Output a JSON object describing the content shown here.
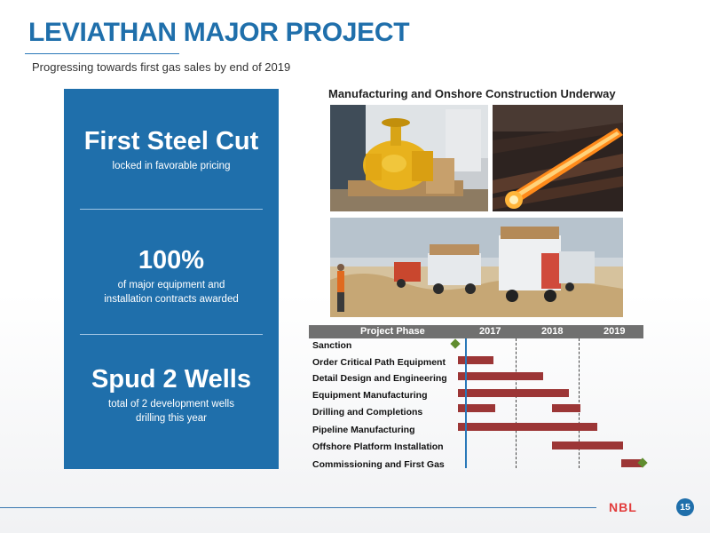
{
  "header": {
    "title": "LEVIATHAN MAJOR PROJECT",
    "subtitle": "Progressing towards first gas sales by end of 2019"
  },
  "panel": {
    "sections": [
      {
        "headline": "First Steel Cut",
        "caption_lines": [
          "locked in favorable pricing"
        ]
      },
      {
        "headline": "100%",
        "caption_lines": [
          "of major equipment and",
          "installation contracts awarded"
        ]
      },
      {
        "headline": "Spud 2 Wells",
        "caption_lines": [
          "total of 2 development wells",
          "drilling this year"
        ]
      }
    ]
  },
  "photos": {
    "title": "Manufacturing and Onshore Construction Underway",
    "items": [
      "yellow-valve-photo",
      "glowing-pipe-photo",
      "dump-trucks-photo"
    ]
  },
  "schedule": {
    "header": {
      "phase_label": "Project Phase",
      "years": [
        "2017",
        "2018",
        "2019"
      ]
    },
    "phases": [
      "Sanction",
      "Order Critical Path Equipment",
      "Detail Design and Engineering",
      "Equipment Manufacturing",
      "Drilling and Completions",
      "Pipeline Manufacturing",
      "Offshore Platform Installation",
      "Commissioning and First Gas"
    ],
    "colors": {
      "bar": "#9c3636",
      "milestone": "#5f8c2e",
      "today_line": "#2a78b8"
    }
  },
  "footer": {
    "logo": "NBL",
    "page_number": "15"
  }
}
